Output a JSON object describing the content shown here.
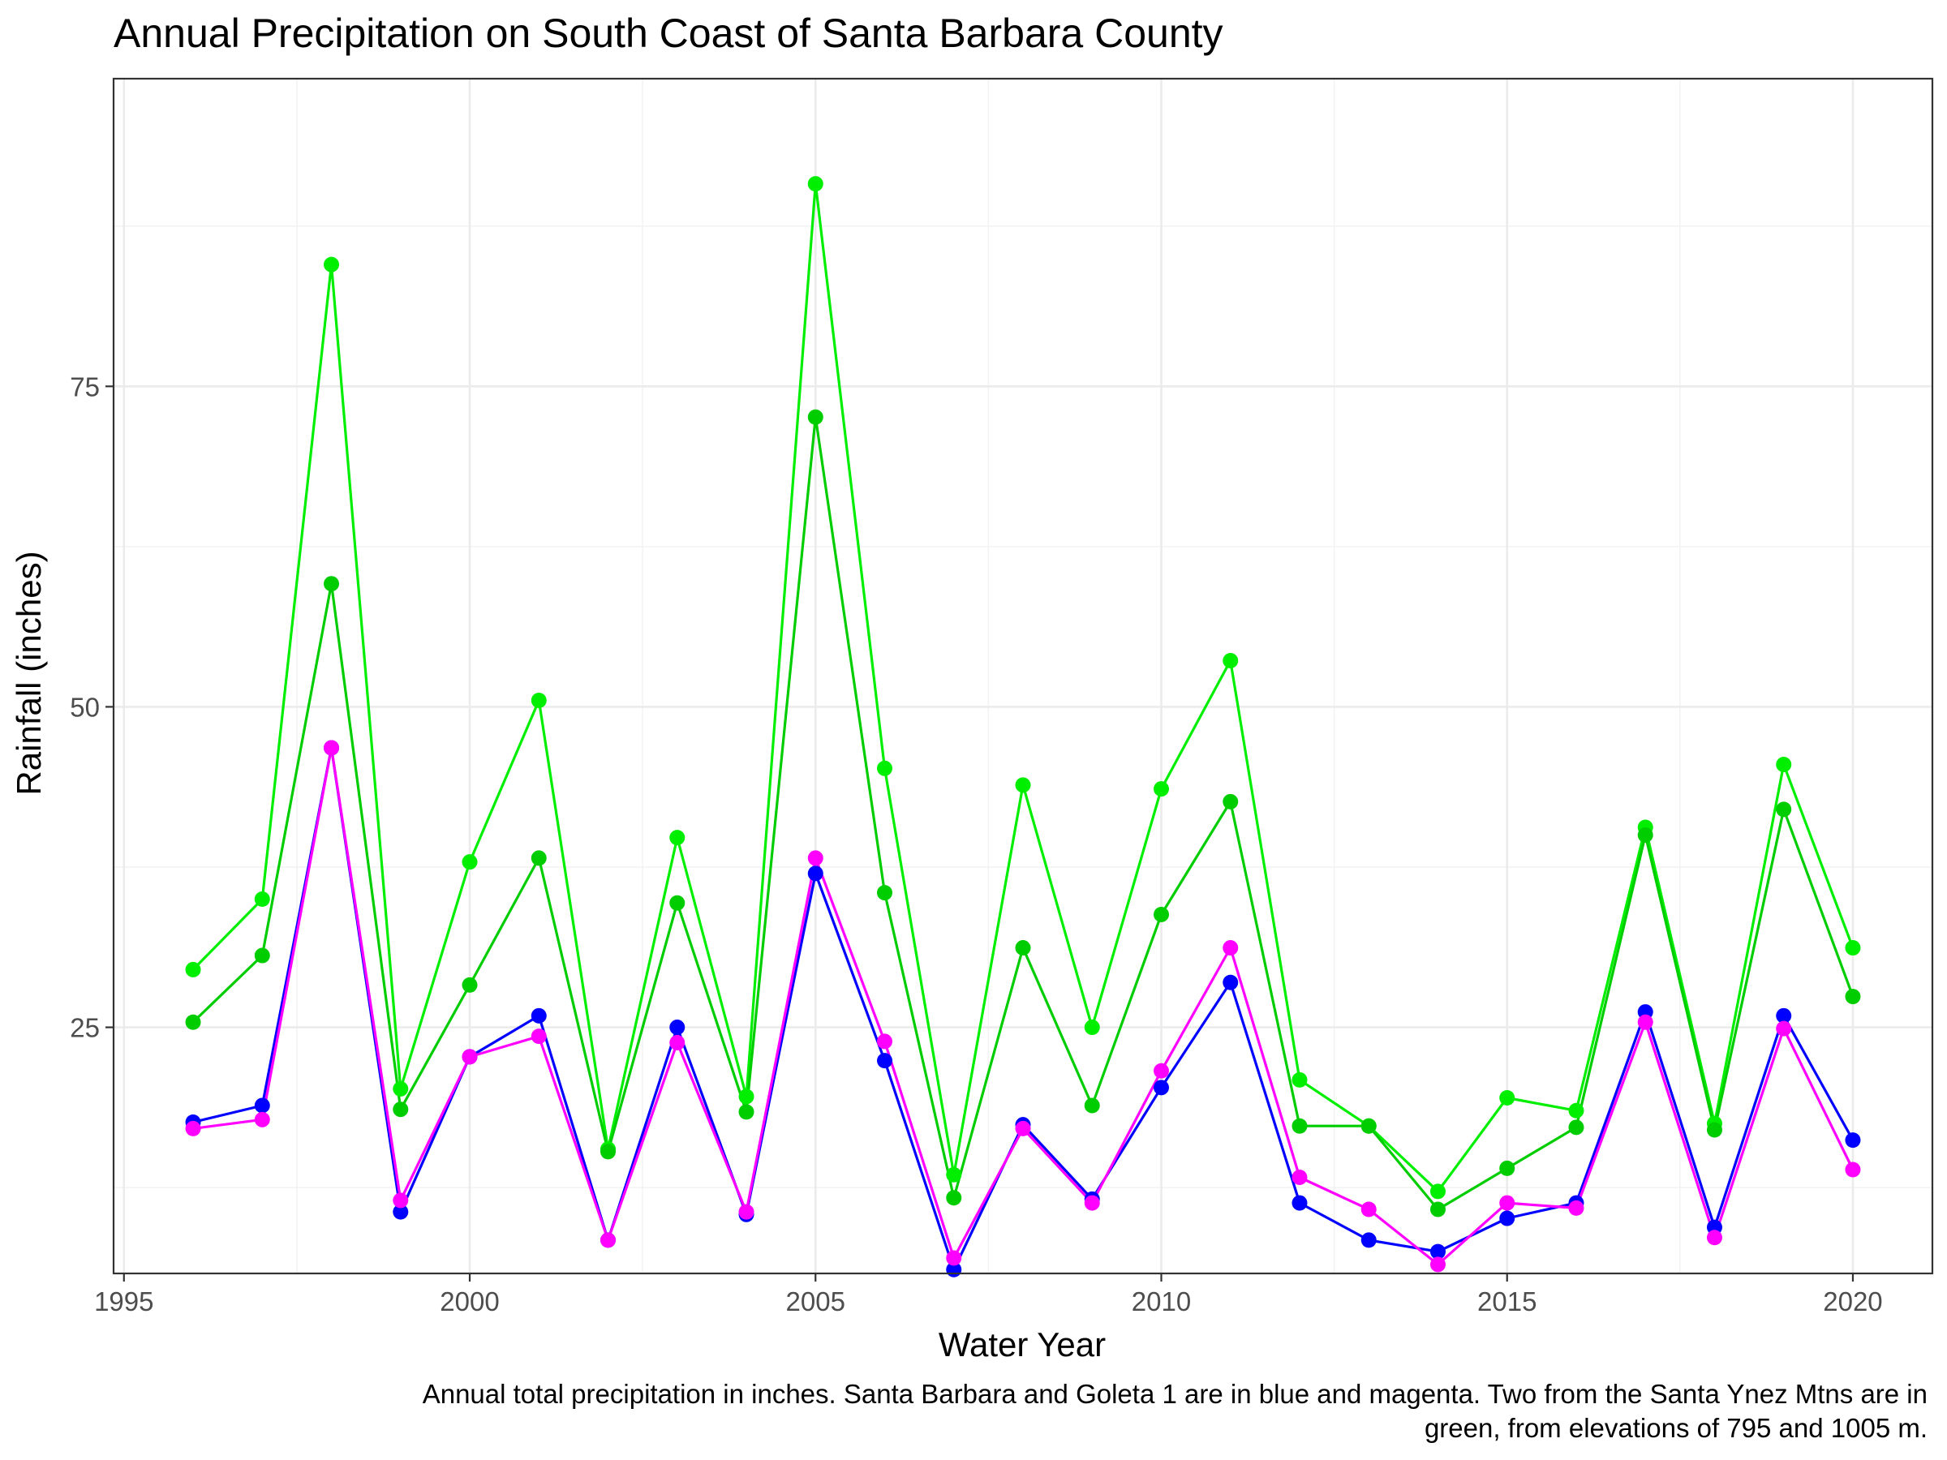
{
  "chart_data": {
    "type": "line",
    "title": "Annual Precipitation on South Coast of Santa Barbara County",
    "xlabel": "Water Year",
    "ylabel": "Rainfall (inches)",
    "caption_lines": [
      "Annual total precipitation in inches. Santa Barbara and Goleta 1 are in blue and magenta. Two from the Santa Ynez Mtns are in",
      "green, from elevations of 795 and 1005 m."
    ],
    "xlim": [
      1994.85,
      2021.15
    ],
    "ylim": [
      5.8,
      99
    ],
    "x_ticks": [
      1995,
      2000,
      2005,
      2010,
      2015,
      2020
    ],
    "x_tick_labels": [
      "1995",
      "2000",
      "2005",
      "2010",
      "2015",
      "2020"
    ],
    "y_ticks": [
      25,
      50,
      75
    ],
    "y_tick_labels": [
      "25",
      "50",
      "75"
    ],
    "grid": true,
    "x": [
      1996,
      1997,
      1998,
      1999,
      2000,
      2001,
      2002,
      2003,
      2004,
      2005,
      2006,
      2007,
      2008,
      2009,
      2010,
      2011,
      2012,
      2013,
      2014,
      2015,
      2016,
      2017,
      2018,
      2019,
      2020
    ],
    "series": [
      {
        "color": "#00ee00",
        "values": [
          29.5,
          35.0,
          84.5,
          20.2,
          37.9,
          50.5,
          15.5,
          39.8,
          19.6,
          90.8,
          45.2,
          13.5,
          43.9,
          25.0,
          43.6,
          53.6,
          20.9,
          17.3,
          12.2,
          19.5,
          18.5,
          40.6,
          17.5,
          45.5,
          31.2
        ]
      },
      {
        "color": "#00cd00",
        "values": [
          25.4,
          30.6,
          59.6,
          18.6,
          28.3,
          38.2,
          15.3,
          34.7,
          18.4,
          72.6,
          35.5,
          11.7,
          31.2,
          18.9,
          33.8,
          42.6,
          17.3,
          17.3,
          10.8,
          14.0,
          17.2,
          40.0,
          17.0,
          42.0,
          27.4
        ]
      },
      {
        "color": "#0000ff",
        "values": [
          17.6,
          18.9,
          46.8,
          10.6,
          22.7,
          25.9,
          8.4,
          25.0,
          10.4,
          37.0,
          22.4,
          6.1,
          17.4,
          11.6,
          20.3,
          28.5,
          11.3,
          8.4,
          7.5,
          10.1,
          11.3,
          26.2,
          9.4,
          25.9,
          16.2
        ]
      },
      {
        "color": "#ff00ff",
        "values": [
          17.1,
          17.8,
          46.8,
          11.5,
          22.7,
          24.3,
          8.4,
          23.8,
          10.6,
          38.2,
          23.9,
          7.0,
          17.1,
          11.3,
          21.6,
          31.2,
          13.3,
          10.8,
          6.5,
          11.3,
          10.9,
          25.4,
          8.6,
          24.9,
          13.9
        ]
      }
    ]
  }
}
